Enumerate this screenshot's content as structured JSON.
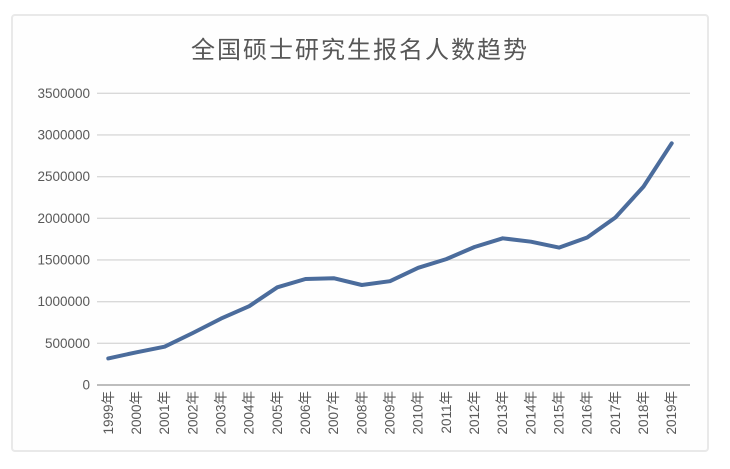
{
  "title": "全国硕士研究生报名人数趋势",
  "colors": {
    "line": "#4b6c9c",
    "grid": "#d9d9d9",
    "axis": "#bdbdbd",
    "tick_text": "#595959",
    "title_text": "#575757",
    "panel_border": "#e9e9e9",
    "panel_background": "#fefefe"
  },
  "chart_data": {
    "type": "line",
    "title": "全国硕士研究生报名人数趋势",
    "categories": [
      "1999年",
      "2000年",
      "2001年",
      "2002年",
      "2003年",
      "2004年",
      "2005年",
      "2006年",
      "2007年",
      "2008年",
      "2009年",
      "2010年",
      "2011年",
      "2012年",
      "2013年",
      "2014年",
      "2015年",
      "2016年",
      "2017年",
      "2018年",
      "2019年"
    ],
    "values": [
      319000,
      392000,
      460000,
      624000,
      797000,
      945000,
      1172000,
      1272000,
      1282000,
      1200000,
      1246000,
      1406000,
      1511000,
      1656000,
      1760000,
      1720000,
      1649000,
      1770000,
      2010000,
      2380000,
      2900000
    ],
    "xlabel": "",
    "ylabel": "",
    "ylim": [
      0,
      3500000
    ],
    "yticks": [
      0,
      500000,
      1000000,
      1500000,
      2000000,
      2500000,
      3000000,
      3500000
    ],
    "grid": "horizontal",
    "legend": "none",
    "x_tick_rotation": 90,
    "marker": "none"
  }
}
